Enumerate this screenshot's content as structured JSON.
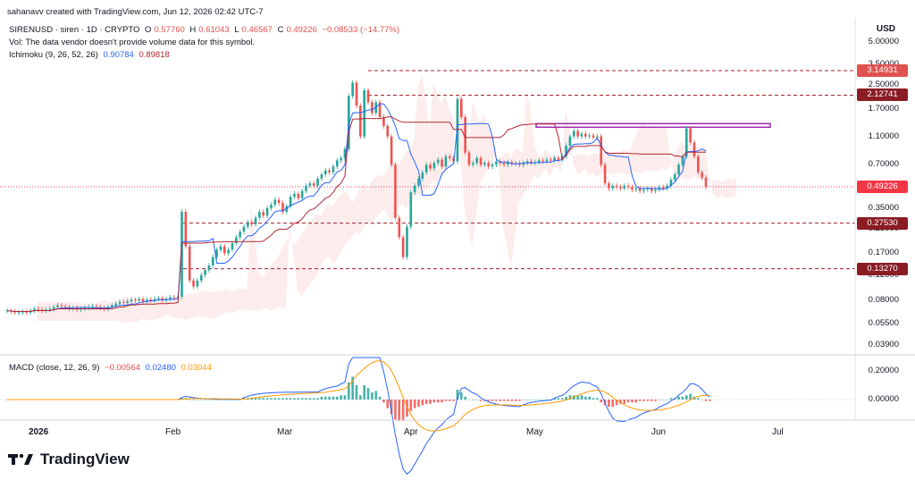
{
  "header": {
    "credit": "sahanavv created with TradingView.com, Jun 12, 2026 02:42 UTC-7",
    "currency": "USD"
  },
  "legend": {
    "symbol": "SIRENUSD · siren · 1D · CRYPTO",
    "o_label": "O",
    "o_value": "0.57760",
    "h_label": "H",
    "h_value": "0.61043",
    "l_label": "L",
    "l_value": "0.46567",
    "c_label": "C",
    "c_value": "0.49226",
    "change": "−0.08533 (−14.77%)",
    "vol_note": "Vol: The data vendor doesn't provide volume data for this symbol.",
    "ichimoku_label": "Ichimoku (9, 26, 52, 26)",
    "ichimoku_v1": "0.90784",
    "ichimoku_v2": "0.89818",
    "macd_label": "MACD (close, 12, 26, 9)",
    "macd_v1": "−0.00564",
    "macd_v2": "0.02480",
    "macd_v3": "0.03044"
  },
  "price_axis": {
    "ticks": [
      "5.00000",
      "3.50000",
      "2.50000",
      "1.70000",
      "1.10000",
      "0.70000",
      "0.35000",
      "0.25000",
      "0.17000",
      "0.12000",
      "0.08000",
      "0.05500",
      "0.03900"
    ],
    "tags": [
      {
        "label": "3.14931",
        "color": "#e0524f"
      },
      {
        "label": "2.12741",
        "color": "#8a1c24"
      },
      {
        "label": "0.49226",
        "color": "#f23645"
      },
      {
        "label": "0.27530",
        "color": "#8a1c24"
      },
      {
        "label": "0.13270",
        "color": "#8a1c24"
      }
    ]
  },
  "macd_axis": {
    "ticks": [
      "0.20000",
      "0.00000"
    ]
  },
  "time_axis": {
    "labels": [
      "2026",
      "Feb",
      "Mar",
      "Apr",
      "May",
      "Jun",
      "Jul"
    ]
  },
  "brand": "TradingView",
  "chart_data": {
    "type": "candlestick",
    "symbol": "SIRENUSD",
    "scale": "log",
    "ylim": [
      0.036,
      5.5
    ],
    "x_ticks": [
      "2026",
      "Feb",
      "Mar",
      "Apr",
      "May",
      "Jun",
      "Jul"
    ],
    "last_close": 0.49226,
    "horizontal_levels": [
      3.14931,
      2.12741,
      0.2753,
      0.1327
    ],
    "highlight_zone": [
      1.28,
      1.35
    ],
    "colors": {
      "up": "#26a69a",
      "down": "#ef5350",
      "tenkan": "#2962ff",
      "kijun": "#b22833",
      "macd": "#2962ff",
      "signal": "#ff9800"
    },
    "closes": [
      0.068,
      0.067,
      0.066,
      0.066,
      0.067,
      0.066,
      0.068,
      0.07,
      0.069,
      0.068,
      0.069,
      0.07,
      0.072,
      0.074,
      0.073,
      0.072,
      0.07,
      0.071,
      0.069,
      0.07,
      0.071,
      0.072,
      0.073,
      0.072,
      0.071,
      0.07,
      0.072,
      0.074,
      0.076,
      0.078,
      0.077,
      0.079,
      0.081,
      0.08,
      0.082,
      0.079,
      0.081,
      0.08,
      0.082,
      0.083,
      0.08,
      0.082,
      0.084,
      0.083,
      0.085,
      0.33,
      0.19,
      0.11,
      0.1,
      0.11,
      0.12,
      0.13,
      0.14,
      0.16,
      0.18,
      0.19,
      0.17,
      0.18,
      0.2,
      0.22,
      0.24,
      0.26,
      0.28,
      0.27,
      0.3,
      0.33,
      0.31,
      0.35,
      0.37,
      0.4,
      0.38,
      0.33,
      0.36,
      0.42,
      0.44,
      0.41,
      0.46,
      0.5,
      0.52,
      0.5,
      0.56,
      0.6,
      0.64,
      0.62,
      0.68,
      0.75,
      0.78,
      0.9,
      2.1,
      2.6,
      1.8,
      1.1,
      2.3,
      1.9,
      1.6,
      1.9,
      1.5,
      1.3,
      1.1,
      0.7,
      0.3,
      0.22,
      0.16,
      0.26,
      0.45,
      0.5,
      0.56,
      0.62,
      0.7,
      0.66,
      0.72,
      0.76,
      0.68,
      0.8,
      0.78,
      0.74,
      2.0,
      1.5,
      0.85,
      0.7,
      0.72,
      0.78,
      0.7,
      0.72,
      0.68,
      0.7,
      0.74,
      0.72,
      0.7,
      0.73,
      0.71,
      0.72,
      0.7,
      0.72,
      0.74,
      0.72,
      0.73,
      0.75,
      0.74,
      0.76,
      0.75,
      0.78,
      0.76,
      0.8,
      0.95,
      1.1,
      1.2,
      1.1,
      1.15,
      1.1,
      1.12,
      1.08,
      1.1,
      0.7,
      0.52,
      0.48,
      0.5,
      0.49,
      0.48,
      0.5,
      0.49,
      0.47,
      0.48,
      0.46,
      0.47,
      0.48,
      0.46,
      0.47,
      0.49,
      0.48,
      0.5,
      0.55,
      0.6,
      0.7,
      0.8,
      1.25,
      1.0,
      0.8,
      0.62,
      0.57,
      0.49
    ],
    "macd_hist": [
      0,
      0,
      0,
      0,
      0,
      0,
      0,
      0,
      0,
      0,
      0,
      0,
      0,
      0,
      0,
      0,
      0,
      0,
      0,
      0,
      0,
      0,
      0,
      0,
      0,
      0,
      0,
      0,
      0,
      0,
      0,
      0,
      0,
      0,
      0,
      0,
      0,
      0,
      0,
      0,
      0,
      0,
      0,
      0,
      0,
      0.01,
      0.01,
      0.0,
      0.0,
      0.0,
      0.0,
      0.0,
      0.0,
      0.0,
      0.0,
      0.0,
      0.0,
      0.0,
      0.0,
      0.0,
      0.0,
      0.01,
      0.01,
      0.01,
      0.01,
      0.01,
      0.01,
      0.01,
      0.01,
      0.01,
      0.01,
      0.01,
      0.01,
      0.01,
      0.01,
      0.01,
      0.01,
      0.01,
      0.01,
      0.01,
      0.01,
      0.02,
      0.02,
      0.02,
      0.02,
      0.02,
      0.03,
      0.03,
      0.12,
      0.16,
      0.1,
      0.03,
      0.1,
      0.08,
      0.05,
      0.06,
      0.02,
      -0.02,
      -0.06,
      -0.1,
      -0.14,
      -0.15,
      -0.15,
      -0.12,
      -0.08,
      -0.06,
      -0.05,
      -0.04,
      -0.03,
      -0.03,
      -0.02,
      -0.02,
      -0.02,
      -0.01,
      -0.01,
      -0.01,
      0.07,
      0.05,
      0.02,
      0.0,
      0.0,
      0.0,
      -0.01,
      -0.01,
      -0.01,
      -0.01,
      -0.01,
      -0.01,
      -0.01,
      -0.01,
      -0.01,
      -0.01,
      -0.01,
      0.0,
      0.0,
      0.0,
      0.0,
      0.0,
      0.0,
      0.0,
      0.0,
      0.01,
      0.01,
      0.01,
      0.02,
      0.03,
      0.03,
      0.03,
      0.03,
      0.02,
      0.02,
      0.01,
      0.01,
      -0.02,
      -0.04,
      -0.05,
      -0.05,
      -0.04,
      -0.03,
      -0.03,
      -0.02,
      -0.02,
      -0.02,
      -0.01,
      -0.01,
      -0.01,
      -0.01,
      -0.01,
      0.0,
      0.0,
      0.0,
      0.01,
      0.01,
      0.02,
      0.02,
      0.03,
      0.04,
      0.02,
      0.01,
      0.0,
      -0.01,
      -0.01
    ]
  }
}
